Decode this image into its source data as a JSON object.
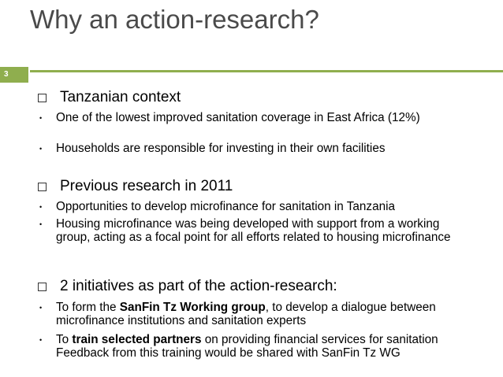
{
  "slide": {
    "title": "Why an action-research?",
    "number": "3",
    "sections": [
      {
        "heading": "Tanzanian context",
        "bullets": [
          "One of the lowest improved sanitation coverage in East Africa (12%)",
          "Households are responsible for investing in their own facilities"
        ]
      },
      {
        "heading": "Previous research in 2011",
        "bullets": [
          "Opportunities to develop microfinance for sanitation in Tanzania",
          "Housing microfinance was being developed with support from a working group, acting as a focal point for all efforts related to housing microfinance"
        ]
      },
      {
        "heading": "2 initiatives as part of the action-research:",
        "bullets": [
          {
            "pre": "To form the ",
            "bold": "SanFin Tz Working group",
            "post": ", to develop a dialogue between microfinance institutions and sanitation experts"
          },
          {
            "pre": "To ",
            "bold": "train selected partners",
            "post": " on providing financial services for sanitation Feedback from this training would be shared with SanFin Tz WG"
          }
        ]
      }
    ],
    "bullet_glyph": "•",
    "colors": {
      "accent": "#8fae4e",
      "title": "#4a4a4a"
    }
  }
}
